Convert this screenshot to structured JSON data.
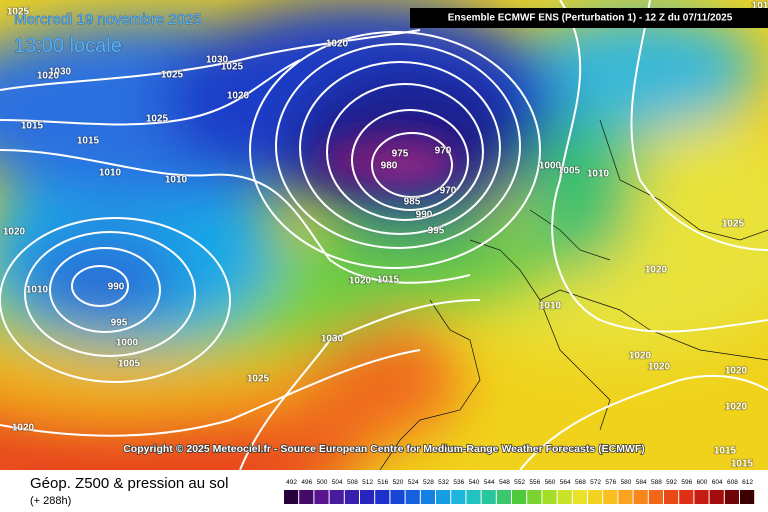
{
  "header": {
    "date": "Mercredi 19 novembre 2025",
    "time": "13:00 locale",
    "model": "Ensemble ECMWF ENS  (Perturbation 1)  -  12 Z du 07/11/2025"
  },
  "map": {
    "copyright": "Copyright © 2025 Meteociel.fr - Source European Centre for Medium-Range Weather Forecasts (ECMWF)",
    "isobar_labels": [
      1025,
      101,
      1020,
      1030,
      1025,
      1025,
      1030,
      1020,
      1020,
      1015,
      1025,
      1015,
      1010,
      1010,
      975,
      970,
      980,
      970,
      985,
      990,
      995,
      1000,
      1005,
      1010,
      1020,
      1010,
      990,
      995,
      1000,
      1005,
      1020,
      1015,
      1030,
      1025,
      1010,
      1025,
      1020,
      1020,
      1020,
      1020,
      1020,
      1020,
      1015,
      1015
    ]
  },
  "footer": {
    "title": "Géop. Z500 & pression au sol",
    "lead": "(+ 288h)"
  },
  "legend": {
    "values": [
      492,
      496,
      500,
      504,
      508,
      512,
      516,
      520,
      524,
      528,
      532,
      536,
      540,
      544,
      548,
      552,
      556,
      560,
      564,
      568,
      572,
      576,
      580,
      584,
      588,
      592,
      596,
      600,
      604,
      608,
      612
    ]
  }
}
